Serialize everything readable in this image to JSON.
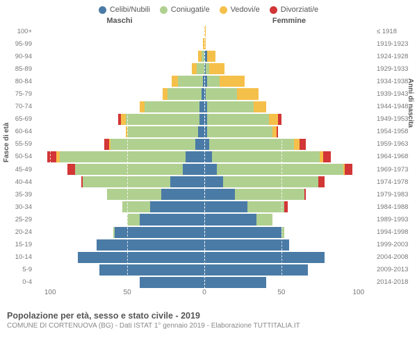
{
  "legend": [
    {
      "label": "Celibi/Nubili",
      "color": "#4a7ba6"
    },
    {
      "label": "Coniugati/e",
      "color": "#b0d090"
    },
    {
      "label": "Vedovi/e",
      "color": "#f5c04a"
    },
    {
      "label": "Divorziati/e",
      "color": "#d23636"
    }
  ],
  "headers": {
    "male": "Maschi",
    "female": "Femmine"
  },
  "y_title_left": "Fasce di età",
  "y_title_right": "Anni di nascita",
  "x_ticks": [
    100,
    50,
    0,
    50,
    100
  ],
  "x_max": 110,
  "age_labels": [
    "100+",
    "95-99",
    "90-94",
    "85-89",
    "80-84",
    "75-79",
    "70-74",
    "65-69",
    "60-64",
    "55-59",
    "50-54",
    "45-49",
    "40-44",
    "35-39",
    "30-34",
    "25-29",
    "20-24",
    "15-19",
    "10-14",
    "5-9",
    "0-4"
  ],
  "birth_labels": [
    "≤ 1918",
    "1919-1923",
    "1924-1928",
    "1929-1933",
    "1934-1938",
    "1939-1943",
    "1944-1948",
    "1949-1953",
    "1954-1958",
    "1959-1963",
    "1964-1968",
    "1969-1973",
    "1974-1978",
    "1979-1983",
    "1984-1988",
    "1989-1993",
    "1994-1998",
    "1999-2003",
    "2004-2008",
    "2009-2013",
    "2014-2018"
  ],
  "colors": {
    "single": "#4a7ba6",
    "married": "#b0d090",
    "widowed": "#f5c04a",
    "divorced": "#d23636"
  },
  "male": [
    {
      "single": 0,
      "married": 0,
      "widowed": 0,
      "divorced": 0
    },
    {
      "single": 0,
      "married": 0,
      "widowed": 1,
      "divorced": 0
    },
    {
      "single": 0,
      "married": 2,
      "widowed": 2,
      "divorced": 0
    },
    {
      "single": 0,
      "married": 5,
      "widowed": 3,
      "divorced": 0
    },
    {
      "single": 1,
      "married": 16,
      "widowed": 4,
      "divorced": 0
    },
    {
      "single": 2,
      "married": 22,
      "widowed": 3,
      "divorced": 0
    },
    {
      "single": 3,
      "married": 36,
      "widowed": 3,
      "divorced": 0
    },
    {
      "single": 3,
      "married": 48,
      "widowed": 3,
      "divorced": 2
    },
    {
      "single": 4,
      "married": 46,
      "widowed": 1,
      "divorced": 0
    },
    {
      "single": 6,
      "married": 55,
      "widowed": 1,
      "divorced": 3
    },
    {
      "single": 12,
      "married": 82,
      "widowed": 2,
      "divorced": 6
    },
    {
      "single": 14,
      "married": 70,
      "widowed": 0,
      "divorced": 5
    },
    {
      "single": 22,
      "married": 57,
      "widowed": 0,
      "divorced": 1
    },
    {
      "single": 28,
      "married": 35,
      "widowed": 0,
      "divorced": 0
    },
    {
      "single": 35,
      "married": 18,
      "widowed": 0,
      "divorced": 0
    },
    {
      "single": 42,
      "married": 8,
      "widowed": 0,
      "divorced": 0
    },
    {
      "single": 58,
      "married": 1,
      "widowed": 0,
      "divorced": 0
    },
    {
      "single": 70,
      "married": 0,
      "widowed": 0,
      "divorced": 0
    },
    {
      "single": 82,
      "married": 0,
      "widowed": 0,
      "divorced": 0
    },
    {
      "single": 68,
      "married": 0,
      "widowed": 0,
      "divorced": 0
    },
    {
      "single": 42,
      "married": 0,
      "widowed": 0,
      "divorced": 0
    }
  ],
  "female": [
    {
      "single": 0,
      "married": 0,
      "widowed": 1,
      "divorced": 0
    },
    {
      "single": 0,
      "married": 0,
      "widowed": 1,
      "divorced": 0
    },
    {
      "single": 2,
      "married": 0,
      "widowed": 5,
      "divorced": 0
    },
    {
      "single": 1,
      "married": 2,
      "widowed": 10,
      "divorced": 0
    },
    {
      "single": 2,
      "married": 8,
      "widowed": 16,
      "divorced": 0
    },
    {
      "single": 1,
      "married": 20,
      "widowed": 14,
      "divorced": 0
    },
    {
      "single": 2,
      "married": 30,
      "widowed": 8,
      "divorced": 0
    },
    {
      "single": 2,
      "married": 40,
      "widowed": 6,
      "divorced": 2
    },
    {
      "single": 2,
      "married": 42,
      "widowed": 3,
      "divorced": 1
    },
    {
      "single": 3,
      "married": 55,
      "widowed": 4,
      "divorced": 4
    },
    {
      "single": 5,
      "married": 70,
      "widowed": 2,
      "divorced": 5
    },
    {
      "single": 8,
      "married": 82,
      "widowed": 1,
      "divorced": 5
    },
    {
      "single": 12,
      "married": 62,
      "widowed": 0,
      "divorced": 4
    },
    {
      "single": 20,
      "married": 45,
      "widowed": 0,
      "divorced": 1
    },
    {
      "single": 28,
      "married": 24,
      "widowed": 0,
      "divorced": 2
    },
    {
      "single": 34,
      "married": 10,
      "widowed": 0,
      "divorced": 0
    },
    {
      "single": 50,
      "married": 2,
      "widowed": 0,
      "divorced": 0
    },
    {
      "single": 55,
      "married": 0,
      "widowed": 0,
      "divorced": 0
    },
    {
      "single": 78,
      "married": 0,
      "widowed": 0,
      "divorced": 0
    },
    {
      "single": 67,
      "married": 0,
      "widowed": 0,
      "divorced": 0
    },
    {
      "single": 40,
      "married": 0,
      "widowed": 0,
      "divorced": 0
    }
  ],
  "footer": {
    "title": "Popolazione per età, sesso e stato civile - 2019",
    "subtitle": "COMUNE DI CORTENUOVA (BG) - Dati ISTAT 1° gennaio 2019 - Elaborazione TUTTITALIA.IT"
  }
}
